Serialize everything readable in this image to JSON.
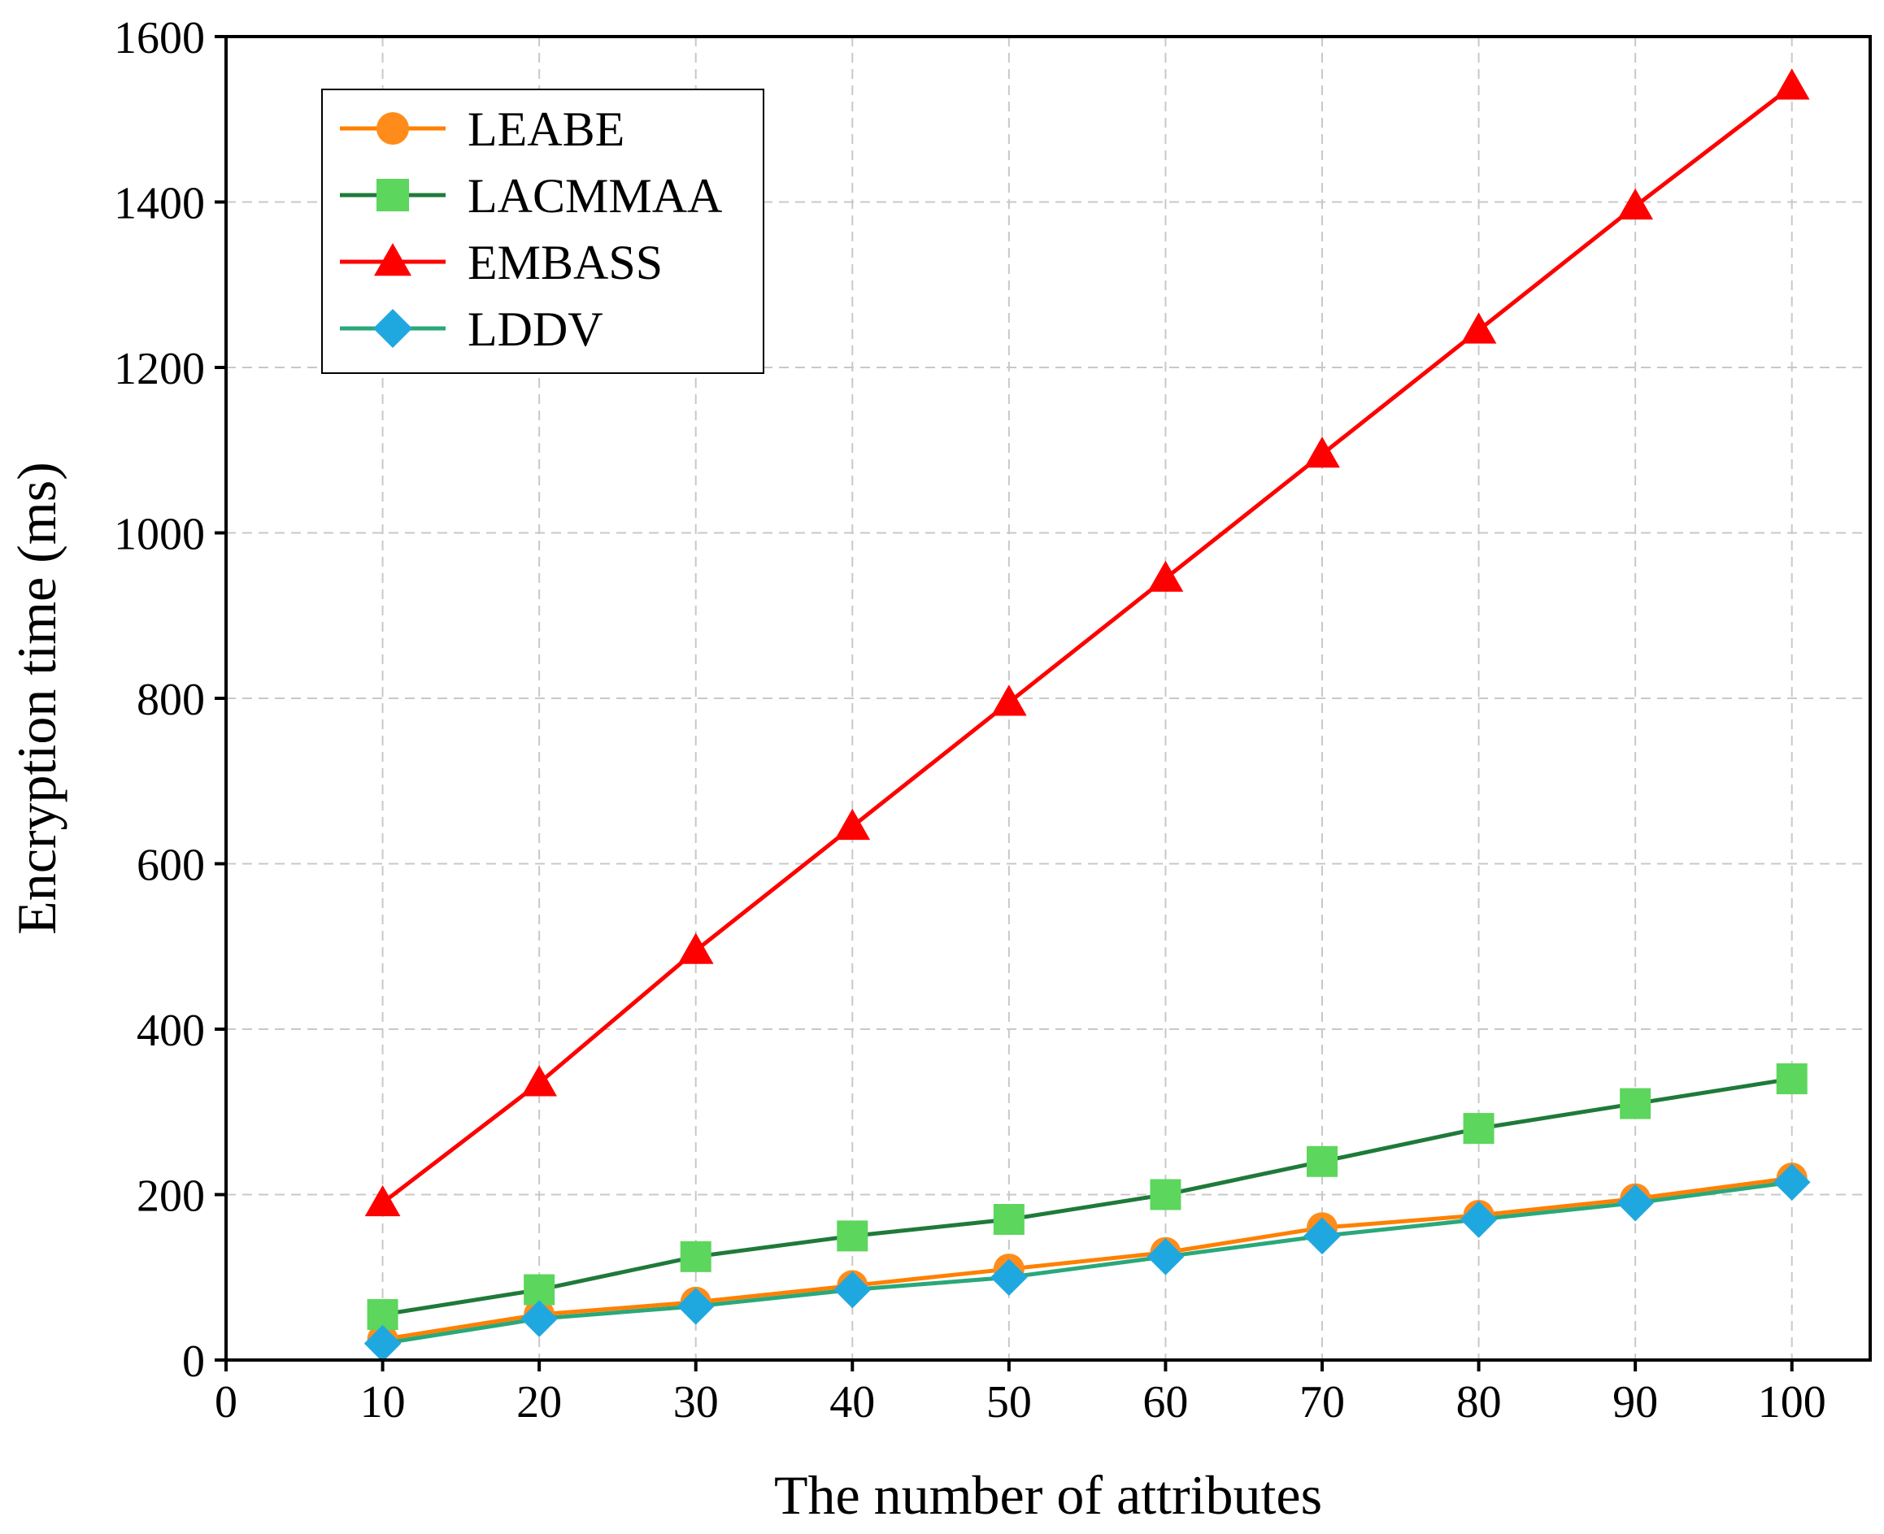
{
  "chart_data": {
    "type": "line",
    "title": "",
    "xlabel": "The number of attributes",
    "ylabel": "Encryption time (ms)",
    "xlim": [
      0,
      105
    ],
    "ylim": [
      0,
      1600
    ],
    "xticks": [
      0,
      10,
      20,
      30,
      40,
      50,
      60,
      70,
      80,
      90,
      100
    ],
    "yticks": [
      0,
      200,
      400,
      600,
      800,
      1000,
      1200,
      1400,
      1600
    ],
    "grid": true,
    "legend_position": "top-left",
    "x": [
      10,
      20,
      30,
      40,
      50,
      60,
      70,
      80,
      90,
      100
    ],
    "series": [
      {
        "name": "LEABE",
        "color": "#ff8000",
        "marker_color": "#ff8c1a",
        "marker": "circle",
        "values": [
          25,
          55,
          70,
          90,
          110,
          130,
          160,
          175,
          195,
          220
        ]
      },
      {
        "name": "LACMMAA",
        "color": "#1f7a3a",
        "marker_color": "#5cd65c",
        "marker": "square",
        "values": [
          55,
          85,
          125,
          150,
          170,
          200,
          240,
          280,
          310,
          340
        ]
      },
      {
        "name": "EMBASS",
        "color": "#ff0000",
        "marker_color": "#ff0000",
        "marker": "triangle",
        "values": [
          190,
          335,
          495,
          645,
          795,
          945,
          1095,
          1245,
          1395,
          1540
        ]
      },
      {
        "name": "LDDV",
        "color": "#2aa87a",
        "marker_color": "#1fa8e0",
        "marker": "diamond",
        "values": [
          20,
          50,
          65,
          85,
          100,
          125,
          150,
          170,
          190,
          215
        ]
      }
    ]
  }
}
